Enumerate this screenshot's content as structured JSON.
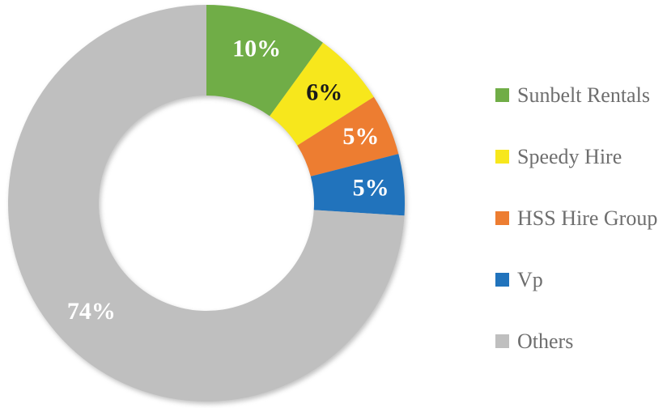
{
  "chart_data": {
    "type": "pie",
    "subtype": "donut",
    "title": "",
    "legend_position": "right",
    "direction": "clockwise",
    "start_angle_deg": 0,
    "series": [
      {
        "name": "Sunbelt Rentals",
        "value": 10,
        "label": "10%",
        "color": "#70AD47",
        "label_color": "#FFFFFF",
        "label_radius": 201
      },
      {
        "name": "Speedy Hire",
        "value": 6,
        "label": "6%",
        "color": "#F7E71C",
        "label_color": "#1A1A1A",
        "label_radius": 200
      },
      {
        "name": "HSS Hire Group",
        "value": 5,
        "label": "5%",
        "color": "#ED7D31",
        "label_color": "#FFFFFF",
        "label_radius": 208
      },
      {
        "name": "Vp",
        "value": 5,
        "label": "5%",
        "color": "#2173BC",
        "label_color": "#FFFFFF",
        "label_radius": 204
      },
      {
        "name": "Others",
        "value": 74,
        "label": "74%",
        "color": "#BFBFBF",
        "label_color": "#FFFFFF",
        "label_radius": 195
      }
    ]
  }
}
